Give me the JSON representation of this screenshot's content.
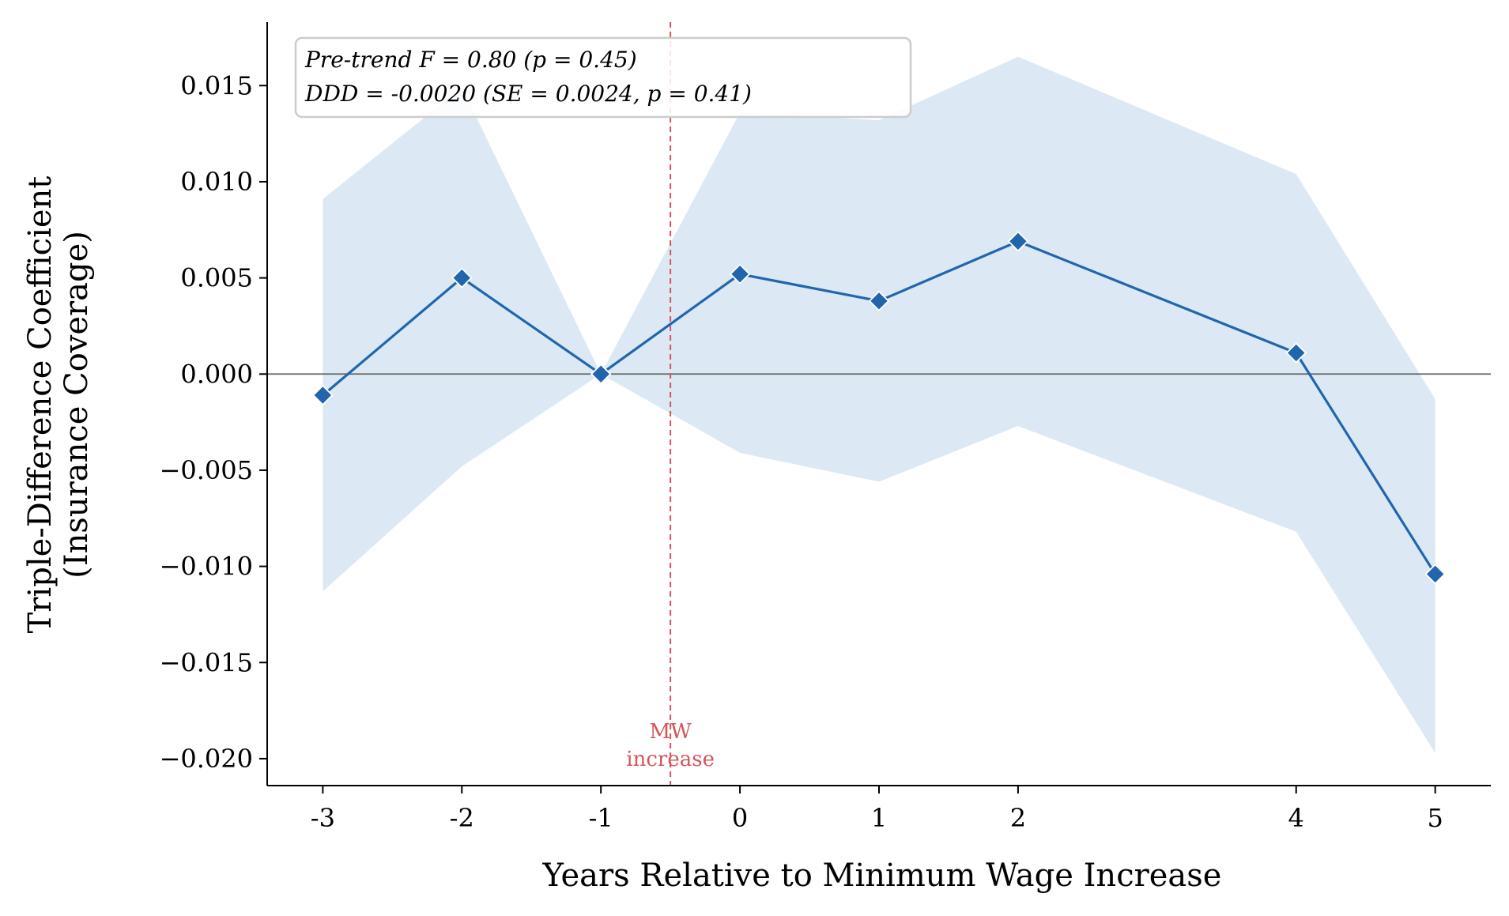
{
  "chart_data": {
    "type": "line",
    "xlabel": "Years Relative to Minimum Wage Increase",
    "ylabel_lines": [
      "Triple-Difference Coefficient",
      "(Insurance Coverage)"
    ],
    "x": [
      -3,
      -2,
      -1,
      0,
      1,
      2,
      4,
      5
    ],
    "x_ticks": [
      -3,
      -2,
      -1,
      0,
      1,
      2,
      4,
      5
    ],
    "x_tick_labels": [
      "-3",
      "-2",
      "-1",
      "0",
      "1",
      "2",
      "4",
      "5"
    ],
    "xlim": [
      -3.4,
      5.4
    ],
    "ylim": [
      -0.0214,
      0.0183
    ],
    "y_ticks": [
      -0.02,
      -0.015,
      -0.01,
      -0.005,
      0.0,
      0.005,
      0.01,
      0.015
    ],
    "y_tick_labels": [
      "−0.020",
      "−0.015",
      "−0.010",
      "−0.005",
      "0.000",
      "0.005",
      "0.010",
      "0.015"
    ],
    "series": [
      {
        "values": [
          -0.0011,
          0.005,
          0.0,
          0.0052,
          0.0038,
          0.0069,
          0.0011,
          -0.0104
        ],
        "ci_lower": [
          -0.0113,
          -0.0048,
          0.0,
          -0.0041,
          -0.0056,
          -0.0027,
          -0.0082,
          -0.0197
        ],
        "ci_upper": [
          0.0091,
          0.0149,
          0.0,
          0.0136,
          0.0132,
          0.0165,
          0.0104,
          -0.0013
        ],
        "color": "#2166ac",
        "band_color": "#dce8f3",
        "marker": "diamond"
      }
    ],
    "reference_lines": {
      "horizontal_zero": {
        "y": 0,
        "color": "#666666"
      },
      "event_line": {
        "x": -0.5,
        "color": "#d6545a",
        "style": "dashed",
        "label_lines": [
          "MW",
          "increase"
        ]
      }
    },
    "annotation_lines": [
      "Pre-trend F = 0.80 (p = 0.45)",
      "DDD = -0.0020 (SE = 0.0024, p = 0.41)"
    ],
    "grid": false,
    "legend": "none"
  }
}
